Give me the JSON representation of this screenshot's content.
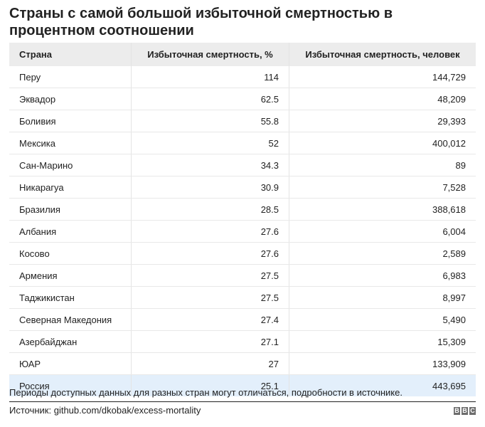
{
  "title": "Страны с самой большой избыточной смертностью в процентном соотношении",
  "table": {
    "headers": [
      "Страна",
      "Избыточная смертность, %",
      "Избыточная смертность, человек"
    ],
    "rows": [
      {
        "country": "Перу",
        "percent": "114",
        "people": "144,729"
      },
      {
        "country": "Эквадор",
        "percent": "62.5",
        "people": "48,209"
      },
      {
        "country": "Боливия",
        "percent": "55.8",
        "people": "29,393"
      },
      {
        "country": "Мексика",
        "percent": "52",
        "people": "400,012"
      },
      {
        "country": "Сан-Марино",
        "percent": "34.3",
        "people": "89"
      },
      {
        "country": "Никарагуа",
        "percent": "30.9",
        "people": "7,528"
      },
      {
        "country": "Бразилия",
        "percent": "28.5",
        "people": "388,618"
      },
      {
        "country": "Албания",
        "percent": "27.6",
        "people": "6,004"
      },
      {
        "country": "Косово",
        "percent": "27.6",
        "people": "2,589"
      },
      {
        "country": "Армения",
        "percent": "27.5",
        "people": "6,983"
      },
      {
        "country": "Таджикистан",
        "percent": "27.5",
        "people": "8,997"
      },
      {
        "country": "Северная Македония",
        "percent": "27.4",
        "people": "5,490"
      },
      {
        "country": "Азербайджан",
        "percent": "27.1",
        "people": "15,309"
      },
      {
        "country": "ЮАР",
        "percent": "27",
        "people": "133,909"
      },
      {
        "country": "Россия",
        "percent": "25.1",
        "people": "443,695",
        "highlighted": true
      }
    ]
  },
  "note": "Периоды доступных данных для разных стран могут отличаться, подробности в источнике.",
  "source": "Источник: github.com/dkobak/excess-mortality",
  "logo": [
    "B",
    "B",
    "C"
  ],
  "colors": {
    "header_bg": "#ececec",
    "highlight_bg": "#e3effb",
    "logo_bg": "#6d6d6d"
  }
}
